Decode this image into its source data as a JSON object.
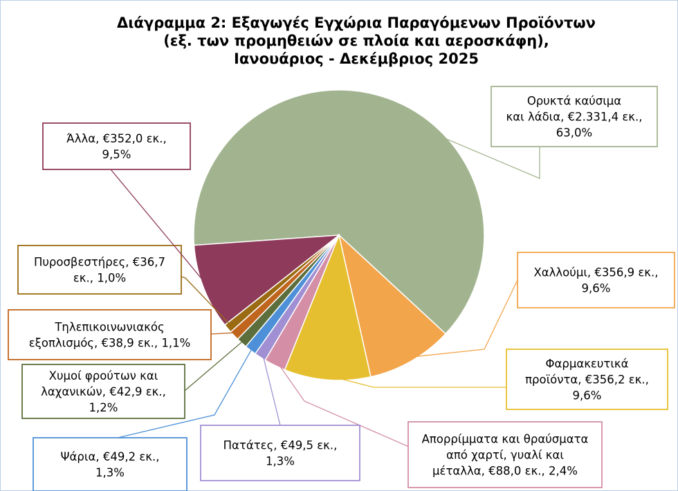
{
  "chart_data": {
    "type": "pie",
    "title": [
      "Διάγραμμα 2: Εξαγωγές Εγχώρια Παραγόμενων Προϊόντων",
      "(εξ. των προμηθειών σε πλοία και αεροσκάφη),",
      "Ιανουάριος - Δεκέμβριος 2025"
    ],
    "labels": [
      [
        "Ορυκτά καύσιμα",
        "και λάδια, €2.331,4 εκ.,",
        "63,0%"
      ],
      [
        "Χαλλούμι, €356,9 εκ.,",
        "9,6%"
      ],
      [
        "Φαρμακευτικά",
        "προϊόντα, €356,2 εκ.,",
        "9,6%"
      ],
      [
        "Απορρίμματα και θραύσματα",
        "από χαρτί, γυαλί και",
        "μέταλλα, €88,0 εκ., 2,4%"
      ],
      [
        "Πατάτες, €49,5 εκ.,",
        "1,3%"
      ],
      [
        "Ψάρια, €49,2 εκ.,",
        "1,3%"
      ],
      [
        "Χυμοί φρούτων και",
        "λαχανικών, €42,9 εκ.,",
        "1,2%"
      ],
      [
        "Τηλεπικοινωνιακός",
        "εξοπλισμός, €38,9 εκ., 1,1%"
      ],
      [
        "Πυροσβεστήρες, €36,7",
        "εκ., 1,0%"
      ],
      [
        "Άλλα, €352,0 εκ.,",
        "9,5%"
      ]
    ],
    "values": [
      63.0,
      9.6,
      9.6,
      2.4,
      1.3,
      1.3,
      1.2,
      1.1,
      1.0,
      9.5
    ],
    "colors": [
      "#a2b48f",
      "#f3a54b",
      "#e5bf2f",
      "#d48ea5",
      "#a08fd2",
      "#4d90d8",
      "#5b6e3b",
      "#c0651e",
      "#9a6b12",
      "#8e3a5a"
    ]
  }
}
